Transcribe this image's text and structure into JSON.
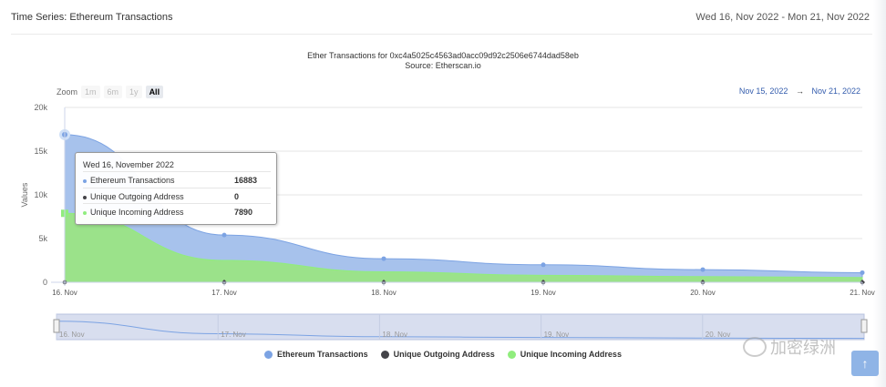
{
  "header": {
    "title": "Time Series: Ethereum Transactions",
    "date_range": "Wed 16, Nov 2022 - Mon 21, Nov 2022"
  },
  "chart_title": "Ether Transactions for 0xc4a5025c4563ad0acc09d92c2506e6744dad58eb",
  "chart_subtitle": "Source: Etherscan.io",
  "zoom": {
    "label": "Zoom",
    "buttons": [
      "1m",
      "6m",
      "1y",
      "All"
    ],
    "active": "All"
  },
  "range_selector": {
    "from": "Nov 15, 2022",
    "arrow": "→",
    "to": "Nov 21, 2022"
  },
  "tooltip": {
    "header": "Wed 16, November 2022",
    "rows": [
      {
        "label": "Ethereum Transactions",
        "value": "16883",
        "color": "#7ca3e3"
      },
      {
        "label": "Unique Outgoing Address",
        "value": "0",
        "color": "#434348"
      },
      {
        "label": "Unique Incoming Address",
        "value": "7890",
        "color": "#90ed7d"
      }
    ]
  },
  "navigator_labels": [
    "16. Nov",
    "17. Nov",
    "18. Nov",
    "19. Nov",
    "20. Nov"
  ],
  "watermark": "加密绿洲",
  "scroll_top_icon": "arrow-up-icon",
  "chart_data": {
    "type": "area",
    "ylabel": "Values",
    "ylim": [
      0,
      20000
    ],
    "yticks": [
      "0",
      "5k",
      "10k",
      "15k",
      "20k"
    ],
    "x": [
      "16. Nov",
      "17. Nov",
      "18. Nov",
      "19. Nov",
      "20. Nov",
      "21. Nov"
    ],
    "series": [
      {
        "name": "Ethereum Transactions",
        "color": "#7ca3e3",
        "values": [
          16883,
          5400,
          2700,
          2000,
          1450,
          1100
        ]
      },
      {
        "name": "Unique Outgoing Address",
        "color": "#434348",
        "values": [
          0,
          0,
          0,
          0,
          0,
          0
        ]
      },
      {
        "name": "Unique Incoming Address",
        "color": "#90ed7d",
        "values": [
          7890,
          2500,
          1200,
          800,
          650,
          550
        ]
      }
    ],
    "legend_position": "bottom",
    "grid": true
  }
}
